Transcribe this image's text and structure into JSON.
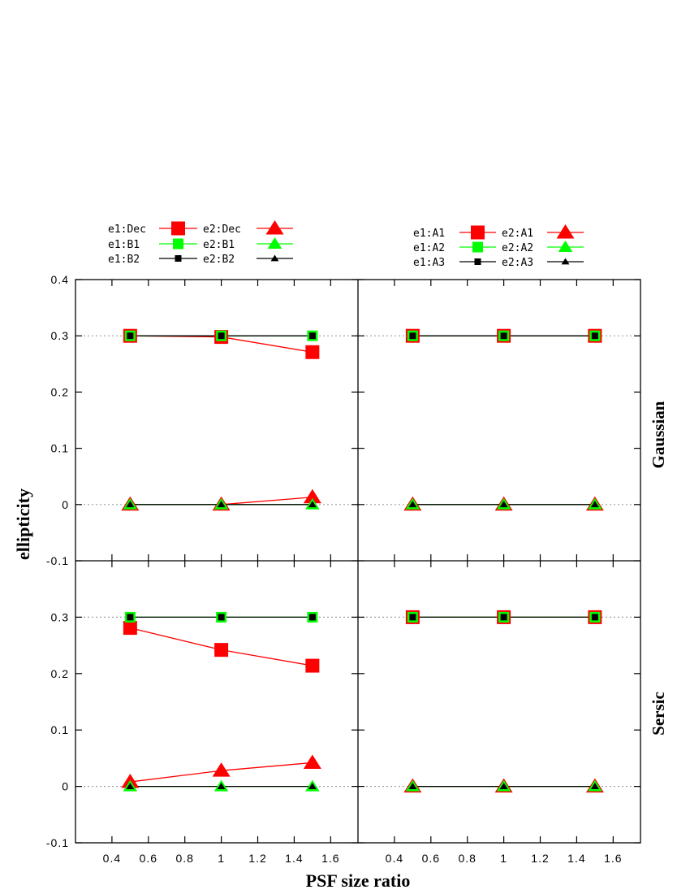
{
  "chart_data": {
    "type": "line",
    "x_label": "PSF size ratio",
    "y_label": "ellipticity",
    "row_labels": [
      "Gaussian",
      "Sersic"
    ],
    "x_range": [
      0.2,
      1.75
    ],
    "y_range": [
      -0.1,
      0.4
    ],
    "x_ticks": [
      0.4,
      0.6,
      0.8,
      1,
      1.2,
      1.4,
      1.6
    ],
    "x_tick_labels": [
      "0.4",
      "0.6",
      "0.8",
      "1",
      "1.2",
      "1.4",
      "1.6"
    ],
    "y_ticks_top": [
      -0.1,
      0,
      0.1,
      0.2,
      0.3,
      0.4
    ],
    "y_tick_labels_top": [
      "-0.1",
      "0",
      "0.1",
      "0.2",
      "0.3",
      "0.4"
    ],
    "y_ticks_bottom": [
      -0.1,
      0,
      0.1,
      0.2,
      0.3
    ],
    "y_tick_labels_bottom": [
      "-0.1",
      "0",
      "0.1",
      "0.2",
      "0.3"
    ],
    "reference_lines": [
      0.3,
      0
    ],
    "colors": {
      "red": "#ff0000",
      "green": "#00ff00",
      "black": "#000000",
      "grid": "#a0a0a0"
    },
    "legends": [
      {
        "column": "left",
        "entries": [
          {
            "label": "e1:Dec",
            "color": "#ff0000",
            "marker": "square",
            "size": "large"
          },
          {
            "label": "e1:B1",
            "color": "#00ff00",
            "marker": "square",
            "size": "medium"
          },
          {
            "label": "e1:B2",
            "color": "#000000",
            "marker": "square",
            "size": "small"
          },
          {
            "label": "e2:Dec",
            "color": "#ff0000",
            "marker": "triangle",
            "size": "large"
          },
          {
            "label": "e2:B1",
            "color": "#00ff00",
            "marker": "triangle",
            "size": "medium"
          },
          {
            "label": "e2:B2",
            "color": "#000000",
            "marker": "triangle",
            "size": "small"
          }
        ]
      },
      {
        "column": "right",
        "entries": [
          {
            "label": "e1:A1",
            "color": "#ff0000",
            "marker": "square",
            "size": "large"
          },
          {
            "label": "e1:A2",
            "color": "#00ff00",
            "marker": "square",
            "size": "medium"
          },
          {
            "label": "e1:A3",
            "color": "#000000",
            "marker": "square",
            "size": "small"
          },
          {
            "label": "e2:A1",
            "color": "#ff0000",
            "marker": "triangle",
            "size": "large"
          },
          {
            "label": "e2:A2",
            "color": "#00ff00",
            "marker": "triangle",
            "size": "medium"
          },
          {
            "label": "e2:A3",
            "color": "#000000",
            "marker": "triangle",
            "size": "small"
          }
        ]
      }
    ],
    "panels": [
      {
        "row": 0,
        "col": 0,
        "row_label": "Gaussian",
        "series": [
          {
            "name": "e1:Dec",
            "color": "#ff0000",
            "marker": "square",
            "size": "large",
            "x": [
              0.5,
              1.0,
              1.5
            ],
            "y": [
              0.3,
              0.298,
              0.271
            ]
          },
          {
            "name": "e1:B1",
            "color": "#00ff00",
            "marker": "square",
            "size": "medium",
            "x": [
              0.5,
              1.0,
              1.5
            ],
            "y": [
              0.3,
              0.3,
              0.3
            ]
          },
          {
            "name": "e1:B2",
            "color": "#000000",
            "marker": "square",
            "size": "small",
            "x": [
              0.5,
              1.0,
              1.5
            ],
            "y": [
              0.3,
              0.3,
              0.3
            ]
          },
          {
            "name": "e2:Dec",
            "color": "#ff0000",
            "marker": "triangle",
            "size": "large",
            "x": [
              0.5,
              1.0,
              1.5
            ],
            "y": [
              0.0,
              0.0,
              0.013
            ]
          },
          {
            "name": "e2:B1",
            "color": "#00ff00",
            "marker": "triangle",
            "size": "medium",
            "x": [
              0.5,
              1.0,
              1.5
            ],
            "y": [
              0.0,
              0.0,
              0.0
            ]
          },
          {
            "name": "e2:B2",
            "color": "#000000",
            "marker": "triangle",
            "size": "small",
            "x": [
              0.5,
              1.0,
              1.5
            ],
            "y": [
              0.0,
              0.0,
              0.0
            ]
          }
        ]
      },
      {
        "row": 0,
        "col": 1,
        "row_label": "Gaussian",
        "series": [
          {
            "name": "e1:A1",
            "color": "#ff0000",
            "marker": "square",
            "size": "large",
            "x": [
              0.5,
              1.0,
              1.5
            ],
            "y": [
              0.3,
              0.3,
              0.3
            ]
          },
          {
            "name": "e1:A2",
            "color": "#00ff00",
            "marker": "square",
            "size": "medium",
            "x": [
              0.5,
              1.0,
              1.5
            ],
            "y": [
              0.3,
              0.3,
              0.3
            ]
          },
          {
            "name": "e1:A3",
            "color": "#000000",
            "marker": "square",
            "size": "small",
            "x": [
              0.5,
              1.0,
              1.5
            ],
            "y": [
              0.3,
              0.3,
              0.3
            ]
          },
          {
            "name": "e2:A1",
            "color": "#ff0000",
            "marker": "triangle",
            "size": "large",
            "x": [
              0.5,
              1.0,
              1.5
            ],
            "y": [
              0.0,
              0.0,
              0.0
            ]
          },
          {
            "name": "e2:A2",
            "color": "#00ff00",
            "marker": "triangle",
            "size": "medium",
            "x": [
              0.5,
              1.0,
              1.5
            ],
            "y": [
              0.0,
              0.0,
              0.0
            ]
          },
          {
            "name": "e2:A3",
            "color": "#000000",
            "marker": "triangle",
            "size": "small",
            "x": [
              0.5,
              1.0,
              1.5
            ],
            "y": [
              0.0,
              0.0,
              0.0
            ]
          }
        ]
      },
      {
        "row": 1,
        "col": 0,
        "row_label": "Sersic",
        "series": [
          {
            "name": "e1:Dec",
            "color": "#ff0000",
            "marker": "square",
            "size": "large",
            "x": [
              0.5,
              1.0,
              1.5
            ],
            "y": [
              0.281,
              0.242,
              0.214
            ]
          },
          {
            "name": "e1:B1",
            "color": "#00ff00",
            "marker": "square",
            "size": "medium",
            "x": [
              0.5,
              1.0,
              1.5
            ],
            "y": [
              0.3,
              0.3,
              0.3
            ]
          },
          {
            "name": "e1:B2",
            "color": "#000000",
            "marker": "square",
            "size": "small",
            "x": [
              0.5,
              1.0,
              1.5
            ],
            "y": [
              0.3,
              0.3,
              0.3
            ]
          },
          {
            "name": "e2:Dec",
            "color": "#ff0000",
            "marker": "triangle",
            "size": "large",
            "x": [
              0.5,
              1.0,
              1.5
            ],
            "y": [
              0.008,
              0.028,
              0.042
            ]
          },
          {
            "name": "e2:B1",
            "color": "#00ff00",
            "marker": "triangle",
            "size": "medium",
            "x": [
              0.5,
              1.0,
              1.5
            ],
            "y": [
              0.0,
              0.0,
              0.0
            ]
          },
          {
            "name": "e2:B2",
            "color": "#000000",
            "marker": "triangle",
            "size": "small",
            "x": [
              0.5,
              1.0,
              1.5
            ],
            "y": [
              0.0,
              0.0,
              0.0
            ]
          }
        ]
      },
      {
        "row": 1,
        "col": 1,
        "row_label": "Sersic",
        "series": [
          {
            "name": "e1:A1",
            "color": "#ff0000",
            "marker": "square",
            "size": "large",
            "x": [
              0.5,
              1.0,
              1.5
            ],
            "y": [
              0.3,
              0.3,
              0.3
            ]
          },
          {
            "name": "e1:A2",
            "color": "#00ff00",
            "marker": "square",
            "size": "medium",
            "x": [
              0.5,
              1.0,
              1.5
            ],
            "y": [
              0.3,
              0.3,
              0.3
            ]
          },
          {
            "name": "e1:A3",
            "color": "#000000",
            "marker": "square",
            "size": "small",
            "x": [
              0.5,
              1.0,
              1.5
            ],
            "y": [
              0.3,
              0.3,
              0.3
            ]
          },
          {
            "name": "e2:A1",
            "color": "#ff0000",
            "marker": "triangle",
            "size": "large",
            "x": [
              0.5,
              1.0,
              1.5
            ],
            "y": [
              0.0,
              0.0,
              0.0
            ]
          },
          {
            "name": "e2:A2",
            "color": "#00ff00",
            "marker": "triangle",
            "size": "medium",
            "x": [
              0.5,
              1.0,
              1.5
            ],
            "y": [
              0.0,
              0.0,
              0.0
            ]
          },
          {
            "name": "e2:A3",
            "color": "#000000",
            "marker": "triangle",
            "size": "small",
            "x": [
              0.5,
              1.0,
              1.5
            ],
            "y": [
              0.0,
              0.0,
              0.0
            ]
          }
        ]
      }
    ]
  }
}
